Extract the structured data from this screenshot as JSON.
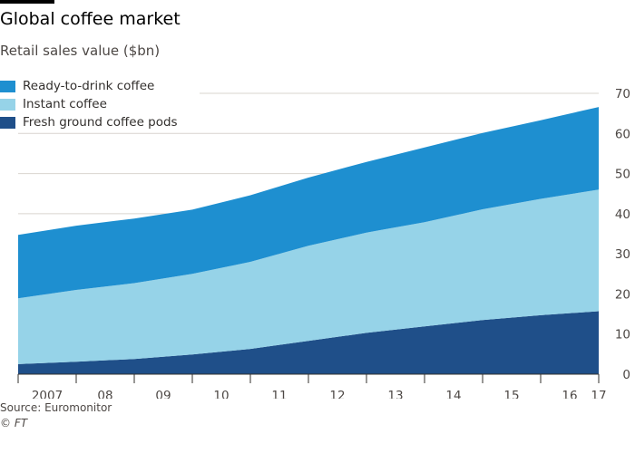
{
  "header": {
    "title": "Global coffee market",
    "subtitle": "Retail sales value ($bn)"
  },
  "footer": {
    "source": "Source: Euromonitor",
    "credit": "© FT"
  },
  "chart_data": {
    "type": "area",
    "stacked": true,
    "title": "Global coffee market",
    "subtitle": "Retail sales value ($bn)",
    "x": [
      2007,
      2008,
      2009,
      2010,
      2011,
      2012,
      2013,
      2014,
      2015,
      2016,
      2017
    ],
    "x_tick_labels": [
      "2007",
      "08",
      "09",
      "10",
      "11",
      "12",
      "13",
      "14",
      "15",
      "16",
      "17"
    ],
    "ylim": [
      0,
      70
    ],
    "y_ticks": [
      0,
      10,
      20,
      30,
      40,
      50,
      60,
      70
    ],
    "y_axis_side": "right",
    "grid": true,
    "legend_placement": "top-left",
    "series": [
      {
        "name": "Fresh ground coffee pods",
        "color": "#1f4f89",
        "values": [
          2.5,
          3.1,
          3.8,
          4.9,
          6.3,
          8.3,
          10.3,
          11.9,
          13.5,
          14.7,
          15.7
        ]
      },
      {
        "name": "Instant coffee",
        "color": "#96d3e8",
        "values": [
          16.4,
          17.9,
          18.9,
          20.1,
          21.7,
          23.7,
          25.0,
          26.0,
          27.6,
          29.0,
          30.3
        ]
      },
      {
        "name": "Ready-to-drink coffee",
        "color": "#1e8fd0",
        "values": [
          15.8,
          16.0,
          16.1,
          16.0,
          16.6,
          17.0,
          17.6,
          18.6,
          19.0,
          19.6,
          20.6
        ]
      }
    ],
    "legend_order": [
      "Ready-to-drink coffee",
      "Instant coffee",
      "Fresh ground coffee pods"
    ]
  }
}
